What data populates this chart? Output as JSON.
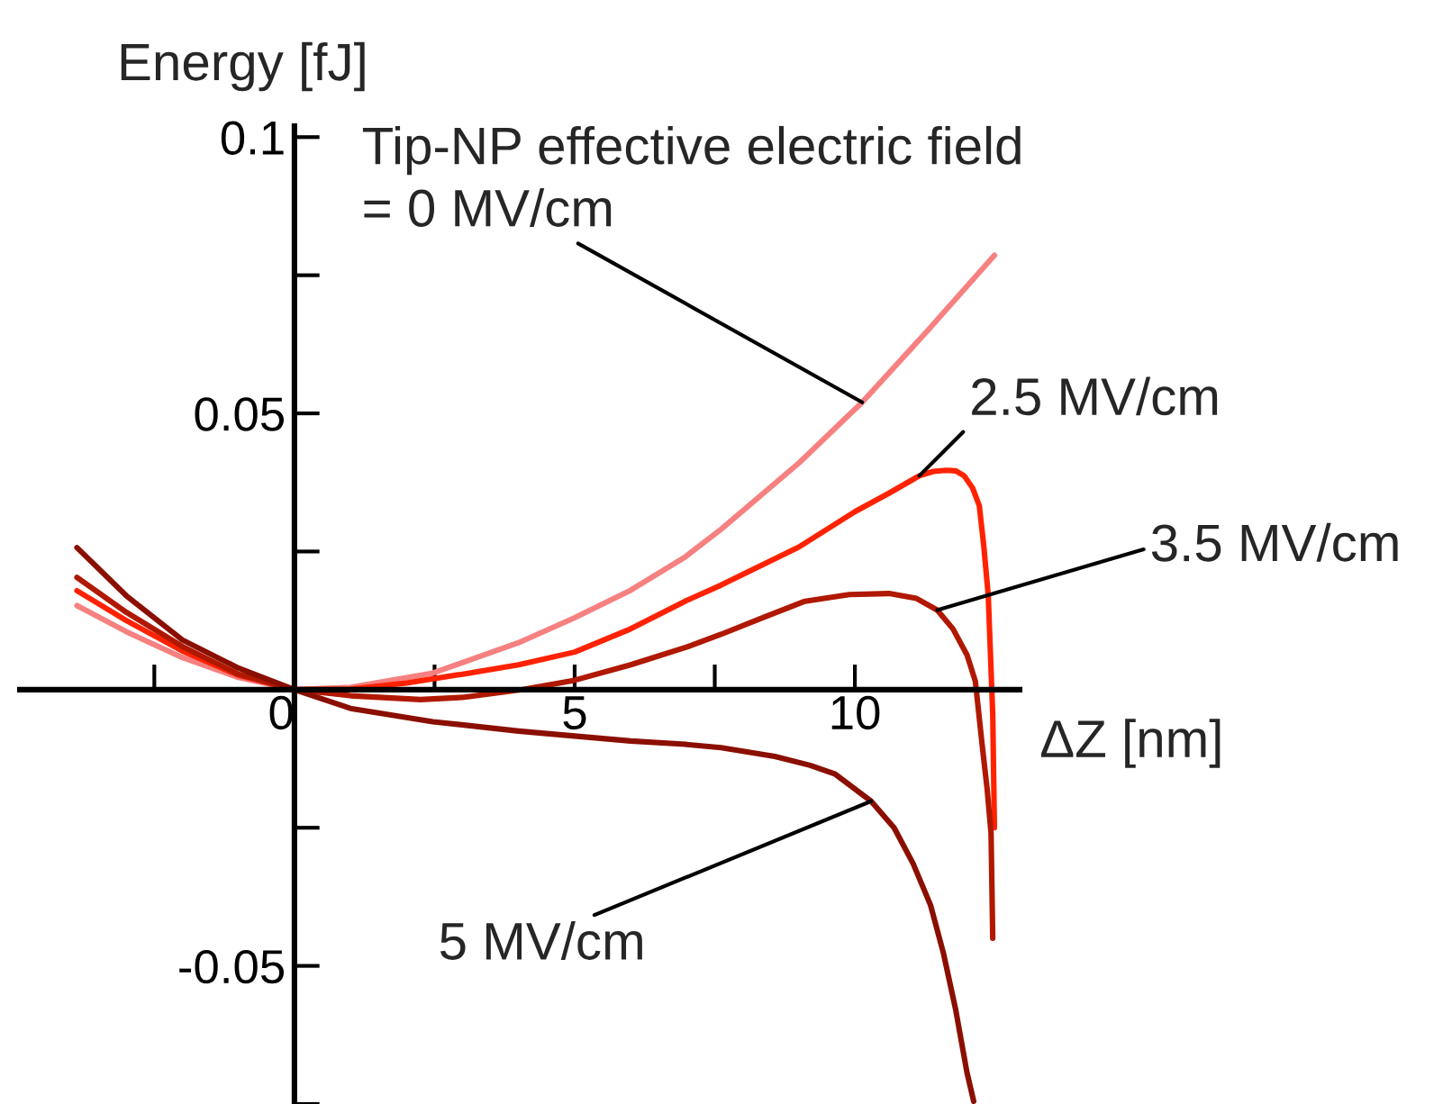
{
  "chart_data": {
    "type": "line",
    "xlabel": "ΔZ [nm]",
    "ylabel": "Energy [fJ]",
    "xlim": [
      -4.9,
      12.94
    ],
    "ylim": [
      -0.075,
      0.102
    ],
    "xticks": [
      {
        "value": -2.5,
        "label": null
      },
      0,
      {
        "value": 2.5,
        "label": null
      },
      5,
      {
        "value": 7.5,
        "label": null
      },
      10
    ],
    "yticks": [
      {
        "value": -0.075,
        "label": null
      },
      -0.05,
      {
        "value": -0.025,
        "label": null
      },
      {
        "value": 0,
        "label": null
      },
      {
        "value": 0.025,
        "label": null
      },
      0.05,
      {
        "value": 0.075,
        "label": null
      },
      0.1
    ],
    "grid": false,
    "legend": false,
    "marker": "none",
    "line_style": "solid",
    "series": [
      {
        "color": "#f78080",
        "x": [
          -3.88,
          -3,
          -2,
          -1,
          0,
          1,
          2.47,
          4,
          5,
          6,
          6.97,
          7.61,
          9,
          10.13,
          11.3,
          12.49
        ],
        "values": [
          0.0152,
          0.0105,
          0.0058,
          0.0022,
          0,
          0.0004,
          0.003,
          0.0085,
          0.013,
          0.018,
          0.024,
          0.029,
          0.041,
          0.052,
          0.065,
          0.0786
        ]
      },
      {
        "color": "#ff2200",
        "x": [
          -3.88,
          -3,
          -2,
          -1,
          0,
          1,
          2,
          3,
          4,
          5,
          6,
          6.97,
          7.61,
          9,
          10,
          10.6,
          11.15,
          11.4,
          11.63,
          11.8,
          11.95,
          12.1,
          12.22,
          12.3,
          12.38,
          12.46,
          12.49
        ],
        "values": [
          0.0179,
          0.0125,
          0.007,
          0.0026,
          0,
          0.0001,
          0.0012,
          0.0028,
          0.0045,
          0.0068,
          0.011,
          0.016,
          0.0189,
          0.0258,
          0.0322,
          0.0355,
          0.0387,
          0.0395,
          0.0397,
          0.0396,
          0.0387,
          0.0365,
          0.0333,
          0.026,
          0.017,
          -0.0045,
          -0.025
        ]
      },
      {
        "color": "#b01800",
        "x": [
          -3.88,
          -3,
          -2,
          -1,
          0,
          1,
          2.25,
          3,
          4.07,
          5,
          6,
          6.97,
          7.61,
          8.4,
          9.11,
          9.9,
          10.61,
          11.1,
          11.47,
          11.75,
          12.0,
          12.15,
          12.27,
          12.36,
          12.43,
          12.46
        ],
        "values": [
          0.0203,
          0.014,
          0.0078,
          0.0028,
          0,
          -0.0011,
          -0.0018,
          -0.0014,
          0,
          0.0017,
          0.0045,
          0.0076,
          0.01,
          0.0132,
          0.016,
          0.0172,
          0.0174,
          0.0165,
          0.0144,
          0.011,
          0.0063,
          0.0015,
          -0.0099,
          -0.018,
          -0.026,
          -0.045
        ]
      },
      {
        "color": "#8b0f00",
        "x": [
          -3.88,
          -3,
          -2,
          -1,
          0,
          1,
          2.47,
          4,
          5,
          6,
          6.97,
          7.61,
          8.57,
          9.2,
          9.65,
          10.29,
          10.7,
          11.04,
          11.35,
          11.58,
          11.8,
          12.0,
          12.12
        ],
        "values": [
          0.0257,
          0.017,
          0.009,
          0.0039,
          0,
          -0.0034,
          -0.0058,
          -0.0075,
          -0.0084,
          -0.0093,
          -0.0099,
          -0.0105,
          -0.0121,
          -0.0137,
          -0.0153,
          -0.0202,
          -0.025,
          -0.0315,
          -0.039,
          -0.0477,
          -0.058,
          -0.0693,
          -0.0745
        ]
      }
    ],
    "annotations": [
      {
        "text": "Tip-NP effective electric field\n= 0 MV/cm",
        "x": 10.13,
        "y": 0.052
      },
      {
        "text": "2.5 MV/cm",
        "x": 11.15,
        "y": 0.0387
      },
      {
        "text": "3.5 MV/cm",
        "x": 11.47,
        "y": 0.0144
      },
      {
        "text": "5 MV/cm",
        "x": 10.29,
        "y": -0.0202
      }
    ]
  }
}
